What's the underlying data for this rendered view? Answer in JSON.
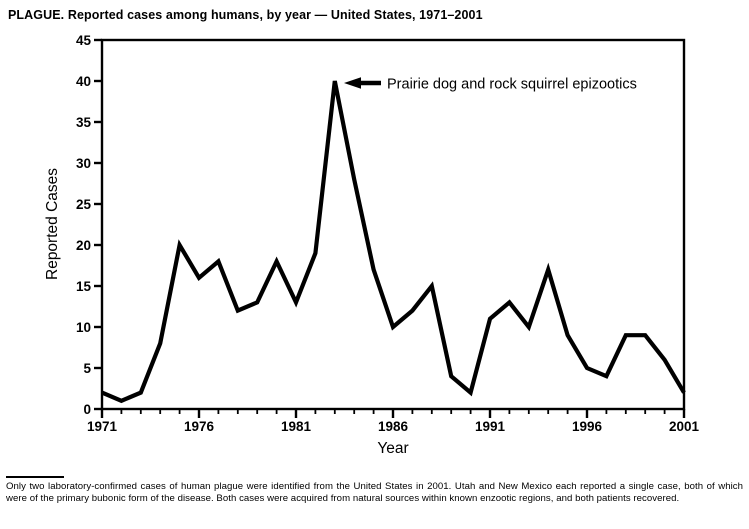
{
  "header": {
    "title": "PLAGUE. Reported cases among humans, by year — United States, 1971–2001"
  },
  "chart_data": {
    "type": "line",
    "title": "PLAGUE. Reported cases among humans, by year — United States, 1971–2001",
    "xlabel": "Year",
    "ylabel": "Reported Cases",
    "x": [
      1971,
      1972,
      1973,
      1974,
      1975,
      1976,
      1977,
      1978,
      1979,
      1980,
      1981,
      1982,
      1983,
      1984,
      1985,
      1986,
      1987,
      1988,
      1989,
      1990,
      1991,
      1992,
      1993,
      1994,
      1995,
      1996,
      1997,
      1998,
      1999,
      2000,
      2001
    ],
    "values": [
      2,
      1,
      2,
      8,
      20,
      16,
      18,
      12,
      13,
      18,
      13,
      19,
      40,
      28,
      17,
      10,
      12,
      15,
      4,
      2,
      11,
      13,
      10,
      17,
      9,
      5,
      4,
      9,
      9,
      6,
      2
    ],
    "xlim": [
      1971,
      2001
    ],
    "ylim": [
      0,
      45
    ],
    "ytick_interval": 5,
    "ytick_labels": [
      "0",
      "5",
      "10",
      "15",
      "20",
      "25",
      "30",
      "35",
      "40",
      "45"
    ],
    "xtick_minor_interval": 1,
    "xtick_major_interval": 5,
    "xtick_labels": [
      "1971",
      "1976",
      "1981",
      "1986",
      "1991",
      "1996",
      "2001"
    ],
    "grid": false,
    "legend": null,
    "line_color": "#000000",
    "background_color": "#ffffff",
    "annotation": {
      "text": "Prairie dog and rock squirrel epizootics",
      "target_year": 1983,
      "target_value": 40,
      "arrow_direction": "left"
    }
  },
  "footnote": {
    "text": "Only two laboratory-confirmed cases of human plague were identified from the United States in 2001. Utah and New Mexico each reported a single case, both of which were of the primary bubonic form of the disease. Both cases were acquired from natural sources within known enzootic regions, and both patients recovered."
  }
}
